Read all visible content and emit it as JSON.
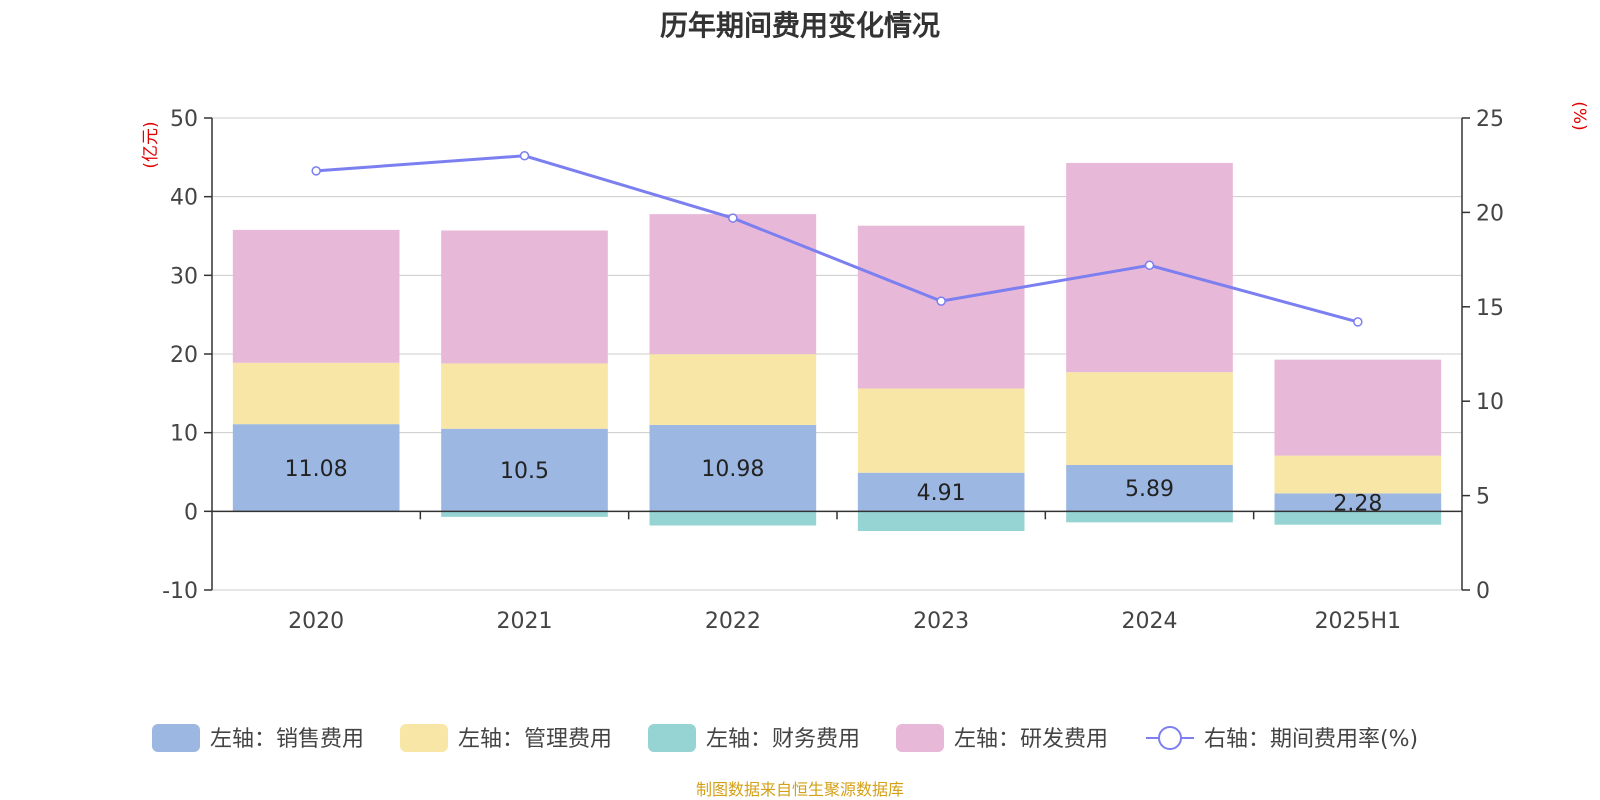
{
  "title": "历年期间费用变化情况",
  "source": "制图数据来自恒生聚源数据库",
  "colors": {
    "sales": "#9cb8e2",
    "admin": "#f7e6a5",
    "finance": "#96d4d4",
    "rnd": "#e8b8d8",
    "line": "#7b7ff0",
    "unit": "#e00000"
  },
  "chart_data": {
    "type": "bar",
    "stacked": true,
    "categories": [
      "2020",
      "2021",
      "2022",
      "2023",
      "2024",
      "2025H1"
    ],
    "left_axis": {
      "unit": "(亿元)",
      "min": -10,
      "max": 50,
      "ticks": [
        "-10",
        "0",
        "10",
        "20",
        "30",
        "40",
        "50"
      ]
    },
    "right_axis": {
      "unit": "(%)",
      "min": 0,
      "max": 25,
      "ticks": [
        "0",
        "5",
        "10",
        "15",
        "20",
        "25"
      ]
    },
    "series": [
      {
        "name": "左轴：销售费用",
        "key": "sales",
        "axis": "left",
        "type": "bar",
        "values": [
          11.08,
          10.5,
          10.98,
          4.91,
          5.89,
          2.28
        ],
        "labels": [
          "11.08",
          "10.5",
          "10.98",
          "4.91",
          "5.89",
          "2.28"
        ]
      },
      {
        "name": "左轴：管理费用",
        "key": "admin",
        "axis": "left",
        "type": "bar",
        "values": [
          7.8,
          8.3,
          9.0,
          10.7,
          11.8,
          4.8
        ]
      },
      {
        "name": "左轴：财务费用",
        "key": "finance",
        "axis": "left",
        "type": "bar",
        "values": [
          0.0,
          -0.7,
          -1.8,
          -2.5,
          -1.4,
          -1.7
        ]
      },
      {
        "name": "左轴：研发费用",
        "key": "rnd",
        "axis": "left",
        "type": "bar",
        "values": [
          16.9,
          16.9,
          17.8,
          20.7,
          26.6,
          12.2
        ]
      },
      {
        "name": "右轴：期间费用率(%)",
        "key": "line",
        "axis": "right",
        "type": "line",
        "values": [
          22.2,
          23.0,
          19.7,
          15.3,
          17.2,
          14.2
        ]
      }
    ],
    "grid": true,
    "legend_position": "bottom"
  }
}
